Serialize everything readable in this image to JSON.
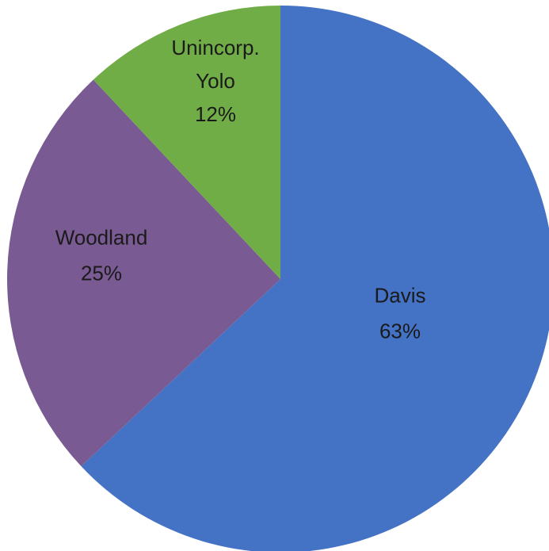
{
  "chart_data": {
    "type": "pie",
    "title": "",
    "start_angle_deg": 0,
    "direction": "clockwise",
    "slices": [
      {
        "label": "Davis",
        "value": 63,
        "value_label": "63%",
        "color": "#4472C4"
      },
      {
        "label": "Woodland",
        "value": 25,
        "value_label": "25%",
        "color": "#7A5A92"
      },
      {
        "label": "Unincorp. Yolo",
        "label_lines": [
          "Unincorp.",
          "Yolo"
        ],
        "value": 12,
        "value_label": "12%",
        "color": "#70AD47"
      }
    ],
    "legend": "none"
  }
}
